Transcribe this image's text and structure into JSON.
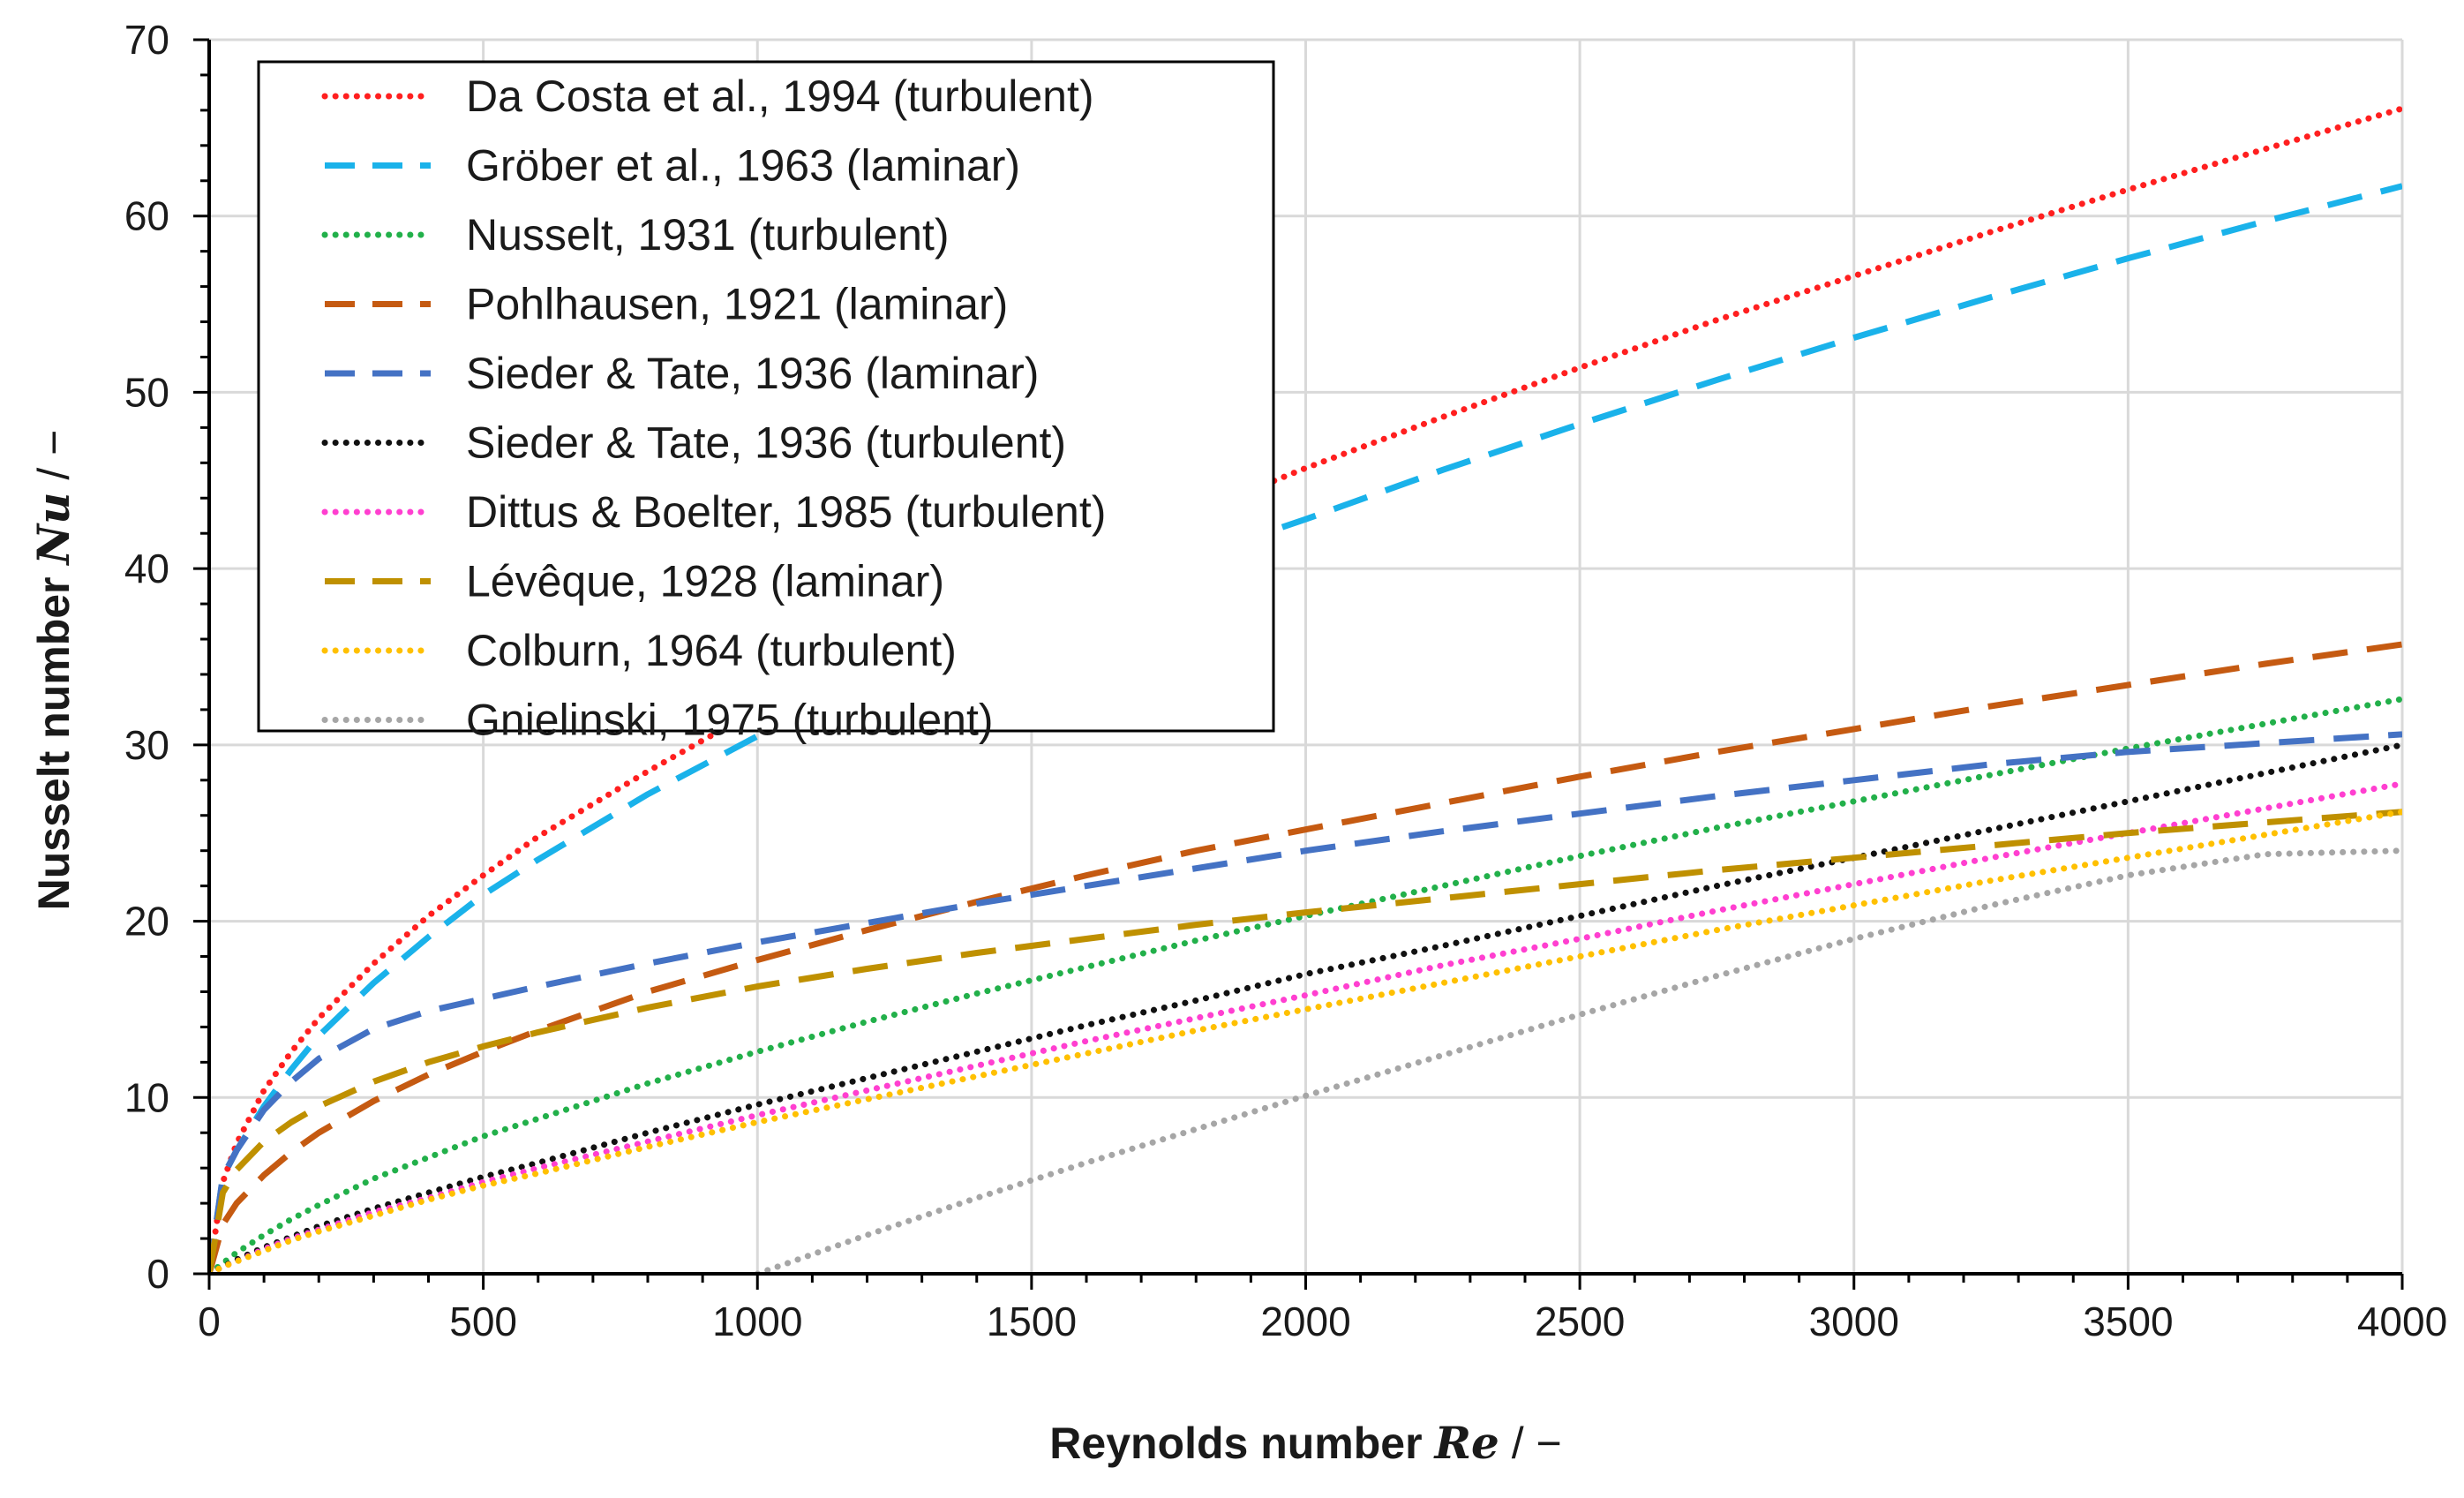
{
  "chart_data": {
    "type": "line",
    "title": "",
    "xlabel": "Reynolds number",
    "xlabel_symbol": "Re",
    "xlabel_unit": "/ −",
    "ylabel": "Nusselt number",
    "ylabel_symbol": "Nu",
    "ylabel_unit": "/ −",
    "xlim": [
      0,
      4000
    ],
    "ylim": [
      0,
      70
    ],
    "grid": true,
    "legend_position": "top-left",
    "xticks": [
      0,
      500,
      1000,
      1500,
      2000,
      2500,
      3000,
      3500,
      4000
    ],
    "yticks": [
      0,
      10,
      20,
      30,
      40,
      50,
      60,
      70
    ],
    "x": [
      0,
      25,
      50,
      100,
      150,
      200,
      300,
      400,
      500,
      600,
      800,
      1000,
      1200,
      1400,
      1600,
      1800,
      2000,
      2250,
      2500,
      2750,
      3000,
      3250,
      3500,
      3750,
      4000
    ],
    "series": [
      {
        "name": "Da Costa et al., 1994 (turbulent)",
        "color": "#ff1f1f",
        "dash": "dotted",
        "values": [
          0,
          5.2,
          7.4,
          10.4,
          12.6,
          14.5,
          17.6,
          20.3,
          22.6,
          24.8,
          28.5,
          32.0,
          35.1,
          38.0,
          40.7,
          43.2,
          45.7,
          48.6,
          51.4,
          54.1,
          56.6,
          59.1,
          61.5,
          63.8,
          66.1
        ]
      },
      {
        "name": "Gröber et al., 1963 (laminar)",
        "color": "#1ab2ea",
        "dash": "long-dash",
        "values": [
          0,
          5.5,
          7.0,
          9.5,
          11.6,
          13.5,
          16.5,
          19.1,
          21.5,
          23.5,
          27.2,
          30.5,
          33.4,
          36.0,
          38.4,
          40.7,
          42.8,
          45.6,
          48.2,
          50.7,
          53.1,
          55.4,
          57.6,
          59.7,
          61.7
        ]
      },
      {
        "name": "Nusselt, 1931 (turbulent)",
        "color": "#22b04a",
        "dash": "dotted",
        "values": [
          0,
          0.6,
          1.2,
          2.2,
          3.1,
          3.9,
          5.4,
          6.6,
          7.8,
          8.8,
          10.8,
          12.6,
          14.3,
          15.9,
          17.4,
          18.9,
          20.3,
          22.0,
          23.7,
          25.3,
          26.8,
          28.3,
          29.8,
          31.2,
          32.6
        ]
      },
      {
        "name": "Pohlhausen, 1921 (laminar)",
        "color": "#c55a11",
        "dash": "long-dash",
        "values": [
          0,
          2.8,
          4.0,
          5.6,
          6.9,
          8.0,
          9.8,
          11.3,
          12.6,
          13.8,
          16.0,
          17.8,
          19.5,
          21.1,
          22.6,
          24.0,
          25.2,
          26.7,
          28.2,
          29.6,
          30.9,
          32.2,
          33.4,
          34.6,
          35.7
        ]
      },
      {
        "name": "Sieder & Tate, 1936 (laminar)",
        "color": "#4472c4",
        "dash": "long-dash",
        "values": [
          0,
          5.5,
          7.0,
          9.3,
          10.9,
          12.2,
          13.9,
          14.9,
          15.6,
          16.3,
          17.6,
          18.8,
          19.9,
          21.0,
          22.0,
          23.0,
          24.0,
          25.1,
          26.1,
          27.1,
          28.0,
          28.9,
          29.6,
          30.1,
          30.6
        ]
      },
      {
        "name": "Sieder & Tate, 1936 (turbulent)",
        "color": "#111111",
        "dash": "dotted",
        "values": [
          0,
          0.4,
          0.8,
          1.5,
          2.1,
          2.7,
          3.7,
          4.6,
          5.5,
          6.3,
          8.0,
          9.6,
          11.1,
          12.6,
          14.1,
          15.5,
          17.0,
          18.6,
          20.3,
          22.0,
          23.6,
          25.2,
          26.8,
          28.4,
          30.0
        ]
      },
      {
        "name": "Dittus & Boelter, 1985 (turbulent)",
        "color": "#ff3fd0",
        "dash": "dotted",
        "values": [
          0,
          0.4,
          0.7,
          1.4,
          2.0,
          2.5,
          3.5,
          4.3,
          5.2,
          6.0,
          7.5,
          9.0,
          10.4,
          11.8,
          13.2,
          14.5,
          15.8,
          17.5,
          19.0,
          20.6,
          22.1,
          23.6,
          25.0,
          26.4,
          27.8
        ]
      },
      {
        "name": "Lévêque, 1928 (laminar)",
        "color": "#bf9000",
        "dash": "long-dash",
        "values": [
          0,
          4.6,
          5.9,
          7.5,
          8.6,
          9.5,
          10.9,
          12.0,
          12.9,
          13.7,
          15.1,
          16.3,
          17.3,
          18.2,
          19.0,
          19.8,
          20.5,
          21.3,
          22.1,
          22.9,
          23.6,
          24.3,
          25.0,
          25.6,
          26.2
        ]
      },
      {
        "name": "Colburn, 1964 (turbulent)",
        "color": "#ffc000",
        "dash": "dotted",
        "values": [
          0,
          0.4,
          0.7,
          1.3,
          1.9,
          2.4,
          3.3,
          4.2,
          5.0,
          5.7,
          7.2,
          8.6,
          9.9,
          11.2,
          12.5,
          13.8,
          15.0,
          16.5,
          18.0,
          19.5,
          20.9,
          22.3,
          23.6,
          24.9,
          26.2
        ]
      },
      {
        "name": "Gnielinski, 1975 (turbulent)",
        "color": "#a6a6a6",
        "dash": "dotted",
        "values": [
          null,
          null,
          null,
          null,
          null,
          null,
          null,
          null,
          null,
          null,
          null,
          0,
          2.2,
          4.3,
          6.3,
          8.2,
          10.1,
          12.4,
          14.7,
          16.9,
          19.0,
          20.9,
          22.6,
          23.8,
          24.0
        ]
      }
    ]
  }
}
